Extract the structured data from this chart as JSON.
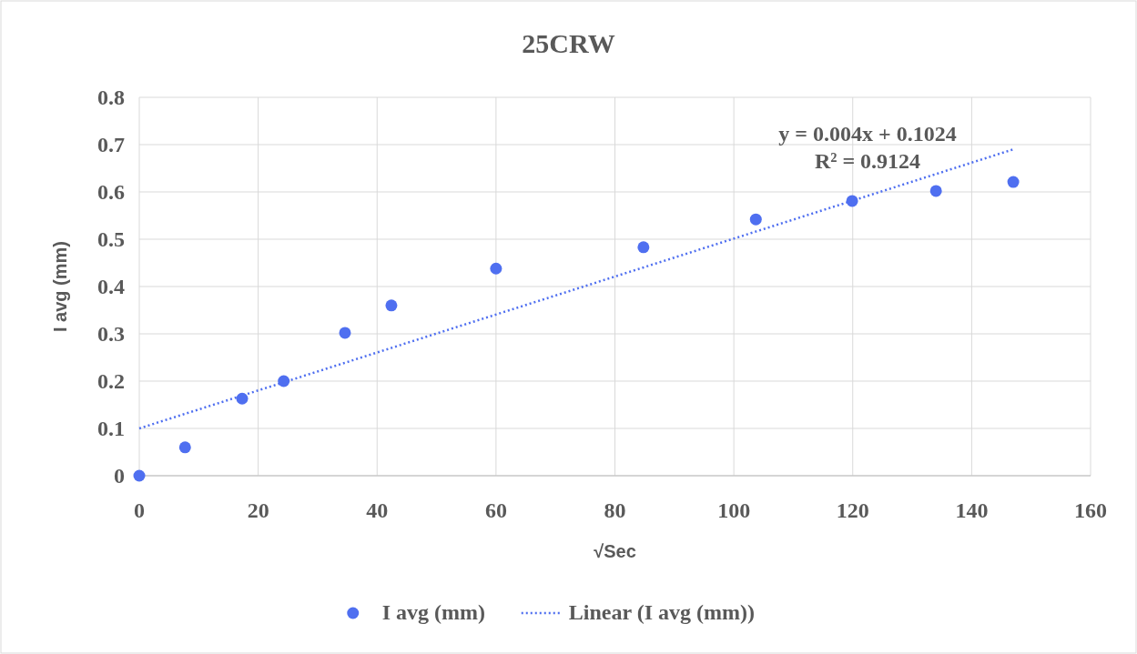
{
  "chart_data": {
    "type": "scatter",
    "title": "25CRW",
    "xlabel": "√Sec",
    "ylabel": "I avg (mm)",
    "xlim": [
      0,
      160
    ],
    "xticks": [
      0,
      20,
      40,
      60,
      80,
      100,
      120,
      140,
      160
    ],
    "ylim": [
      0,
      0.8
    ],
    "yticks": [
      0,
      0.1,
      0.2,
      0.3,
      0.4,
      0.5,
      0.6,
      0.7,
      0.8
    ],
    "grid": true,
    "legend": "bottom",
    "annotations": [
      "y = 0.004x + 0.1024",
      "R² = 0.9124"
    ],
    "series": [
      {
        "name": "I avg (mm)",
        "color": "#4f6ff0",
        "marker": "circle",
        "x": [
          0,
          7.7,
          17.3,
          24.3,
          34.6,
          42.4,
          60,
          84.8,
          103.7,
          119.9,
          134,
          147
        ],
        "values": [
          0,
          0.06,
          0.163,
          0.2,
          0.302,
          0.36,
          0.438,
          0.483,
          0.542,
          0.581,
          0.602,
          0.621
        ]
      },
      {
        "name": "Linear (I avg (mm))",
        "type": "line",
        "color": "#4f6ff0",
        "line_style": "dotted",
        "x": [
          0,
          147
        ],
        "values": [
          0.1,
          0.69
        ]
      }
    ]
  }
}
